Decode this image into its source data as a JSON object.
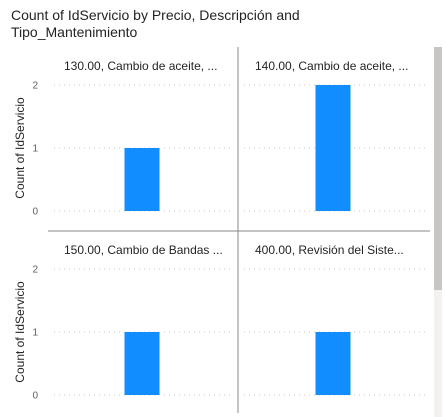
{
  "chart_data": {
    "type": "bar",
    "title": "Count of IdServicio by Precio, Descripción and Tipo_Mantenimiento",
    "ylabel": "Count of IdServicio",
    "color": "#118DFF",
    "rows": [
      {
        "ylim": [
          0,
          2
        ],
        "yticks": [
          0,
          1,
          2
        ],
        "panels": [
          {
            "title": "130.00, Cambio de aceite, ...",
            "values": [
              1
            ]
          },
          {
            "title": "140.00, Cambio de aceite, ...",
            "values": [
              2
            ]
          }
        ]
      },
      {
        "ylim": [
          0,
          2
        ],
        "yticks": [
          0,
          1,
          2
        ],
        "panels": [
          {
            "title": "150.00, Cambio de Bandas ...",
            "values": [
              1
            ]
          },
          {
            "title": "400.00, Revisión del Siste...",
            "values": [
              1
            ]
          }
        ]
      }
    ]
  }
}
